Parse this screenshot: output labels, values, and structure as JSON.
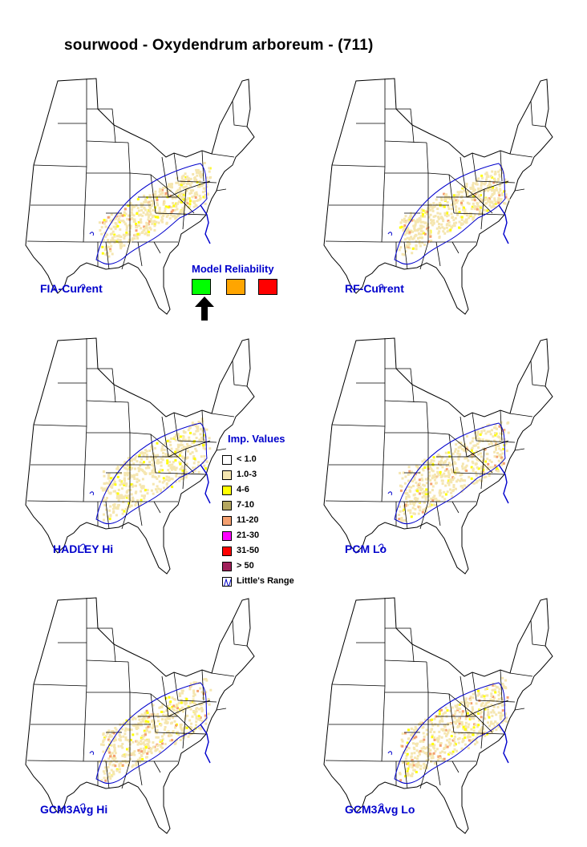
{
  "title": "sourwood - Oxydendrum arboreum - (711)",
  "maps": [
    {
      "label": "FIA-Current"
    },
    {
      "label": "RF-Current"
    },
    {
      "label": "HADLEY Hi"
    },
    {
      "label": "PCM Lo"
    },
    {
      "label": "GCM3Avg Hi"
    },
    {
      "label": "GCM3Avg Lo"
    }
  ],
  "model_reliability": {
    "heading": "Model Reliability",
    "levels": [
      {
        "color": "#00ff00",
        "selected": true
      },
      {
        "color": "#ffa500",
        "selected": false
      },
      {
        "color": "#ff0000",
        "selected": false
      }
    ]
  },
  "legend": {
    "heading": "Imp. Values",
    "items": [
      {
        "label": "< 1.0",
        "color": "#ffffff"
      },
      {
        "label": "1.0-3",
        "color": "#f5e6b0"
      },
      {
        "label": "4-6",
        "color": "#ffff00"
      },
      {
        "label": "7-10",
        "color": "#b5a760"
      },
      {
        "label": "11-20",
        "color": "#f4a070"
      },
      {
        "label": "21-30",
        "color": "#ff00ff"
      },
      {
        "label": "31-50",
        "color": "#ff0000"
      },
      {
        "label": "> 50",
        "color": "#a0205a"
      },
      {
        "label": "Little's Range",
        "color": "#0000cc"
      }
    ]
  }
}
